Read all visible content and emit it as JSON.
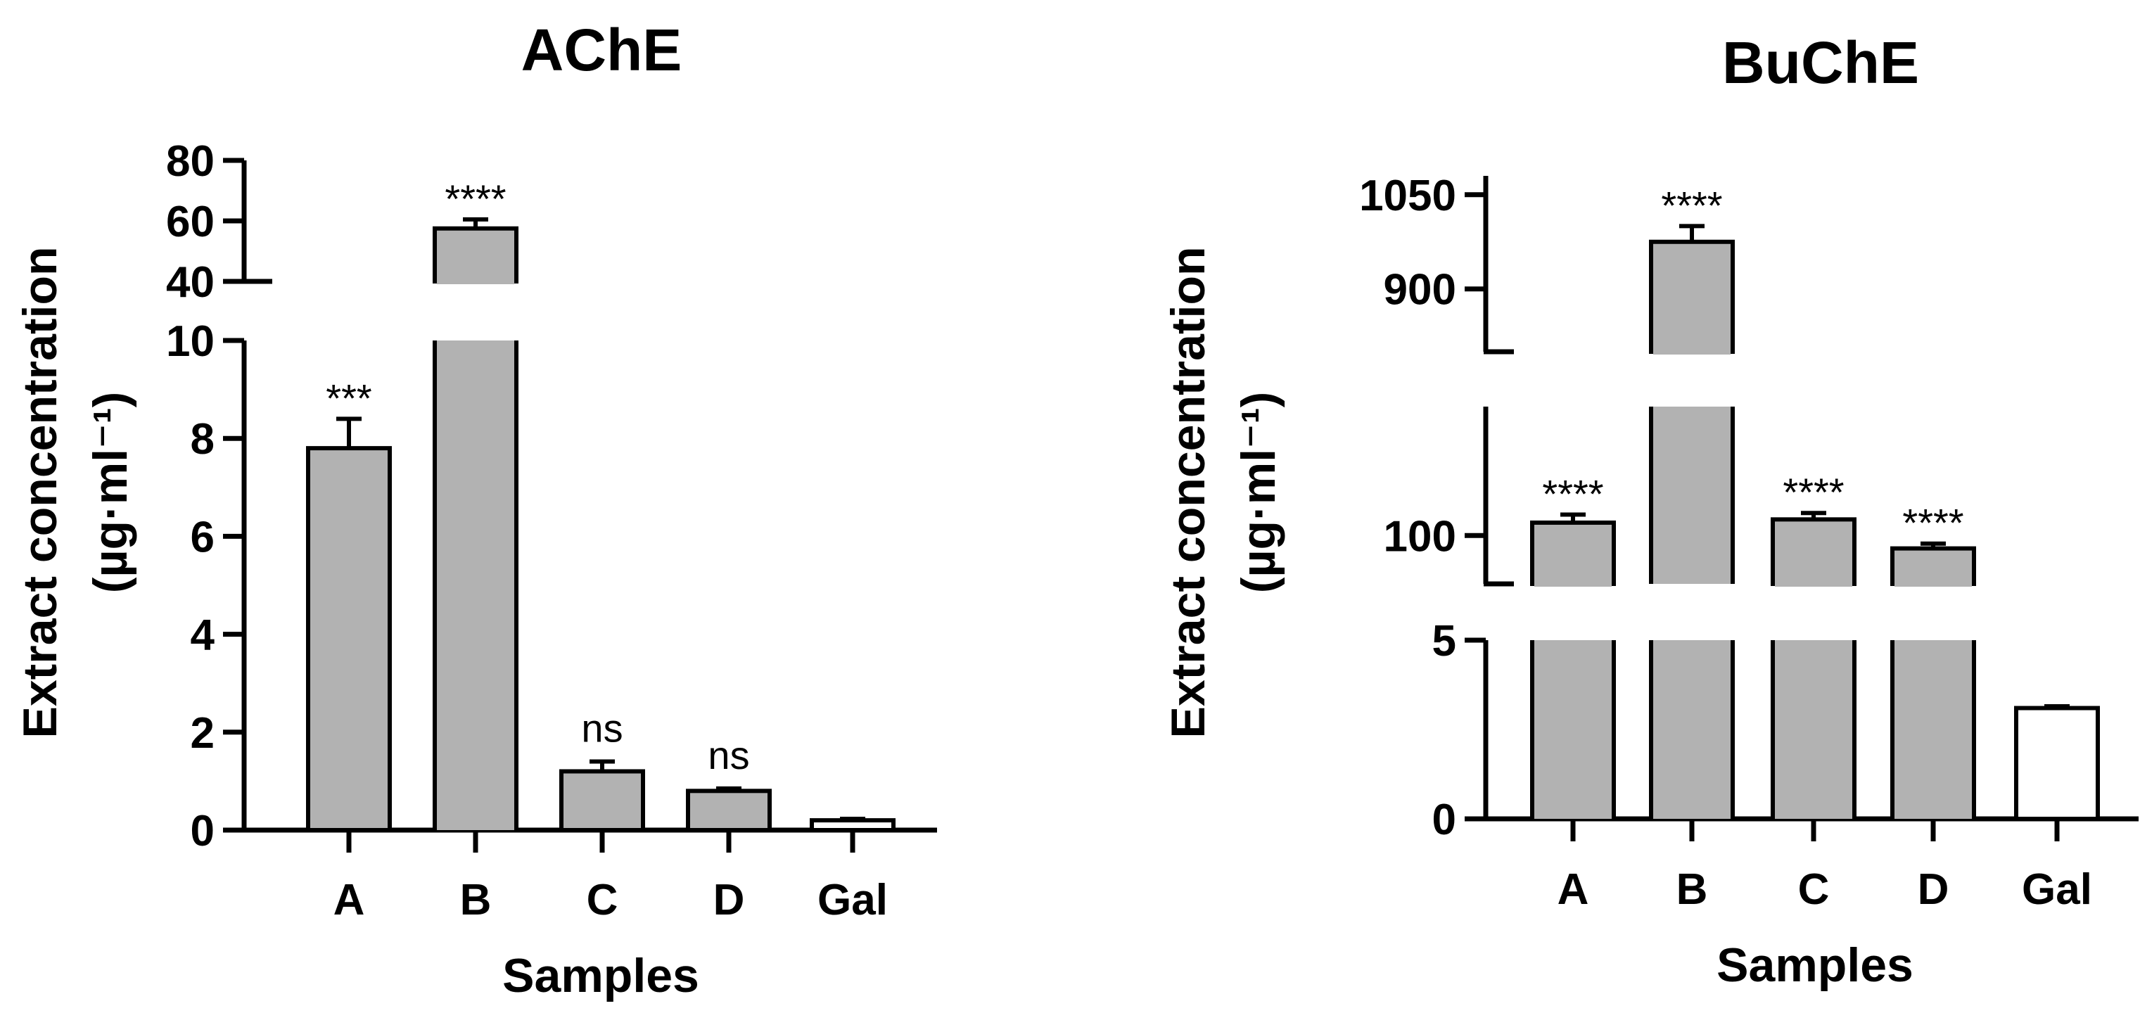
{
  "chart_data": [
    {
      "type": "bar",
      "title": "AChE",
      "xlabel": "Samples",
      "ylabel_line1": "Extract concentration",
      "ylabel_line2": "(µg·ml⁻¹)",
      "categories": [
        "A",
        "B",
        "C",
        "D",
        "Gal"
      ],
      "values": [
        7.8,
        57.5,
        1.2,
        0.8,
        0.2
      ],
      "errors": [
        0.6,
        3.0,
        0.2,
        0.05,
        0.03
      ],
      "significance": [
        "***",
        "****",
        "ns",
        "ns",
        ""
      ],
      "bar_colors": [
        "#b2b2b2",
        "#b2b2b2",
        "#b2b2b2",
        "#b2b2b2",
        "#ffffff"
      ],
      "axis_break": {
        "lower_range": [
          0,
          10
        ],
        "upper_range": [
          40,
          80
        ],
        "lower_ticks": [
          "0",
          "2",
          "4",
          "6",
          "8",
          "10"
        ],
        "upper_ticks": [
          "40",
          "60",
          "80"
        ]
      }
    },
    {
      "type": "bar",
      "title": "BuChE",
      "xlabel": "Samples",
      "ylabel_line1": "Extract concentration",
      "ylabel_line2": "(µg·ml⁻¹)",
      "categories": [
        "A",
        "B",
        "C",
        "D",
        "Gal"
      ],
      "values": [
        108,
        975,
        110,
        92,
        3.1
      ],
      "errors": [
        5,
        25,
        4,
        3,
        0.05
      ],
      "significance": [
        "****",
        "****",
        "****",
        "****",
        ""
      ],
      "bar_colors": [
        "#b2b2b2",
        "#b2b2b2",
        "#b2b2b2",
        "#b2b2b2",
        "#ffffff"
      ],
      "axis_break": {
        "lower_range": [
          0,
          5
        ],
        "middle_range": [
          70,
          180
        ],
        "upper_range": [
          800,
          1080
        ],
        "lower_ticks": [
          "0",
          "5"
        ],
        "middle_ticks": [
          "100"
        ],
        "upper_ticks": [
          "900",
          "1050"
        ]
      }
    }
  ]
}
